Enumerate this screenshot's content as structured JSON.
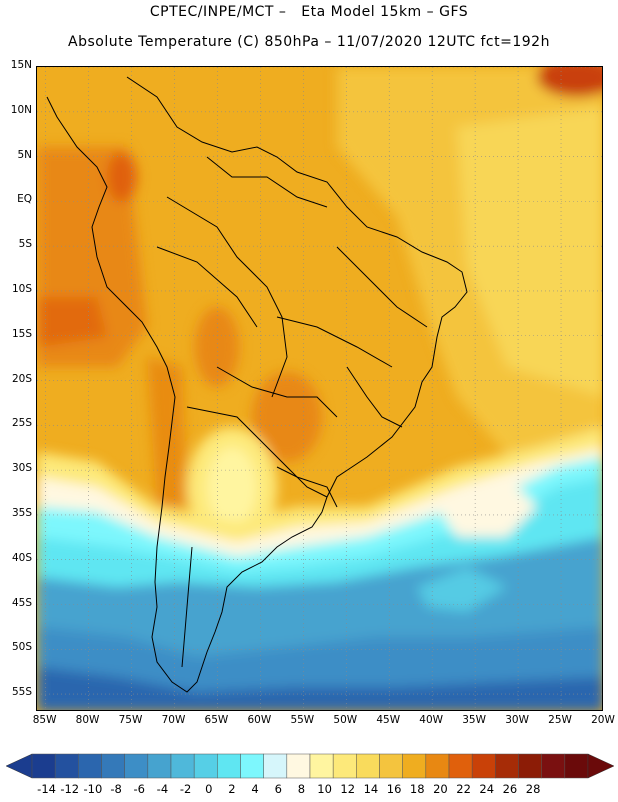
{
  "header": {
    "line1": "CPTEC/INPE/MCT –   Eta Model 15km – GFS",
    "line2": "Absolute Temperature (C) 850hPa – 11/07/2020 12UTC fct=192h"
  },
  "map": {
    "lat_ticks": [
      "15N",
      "10N",
      "5N",
      "EQ",
      "5S",
      "10S",
      "15S",
      "20S",
      "25S",
      "30S",
      "35S",
      "40S",
      "45S",
      "50S",
      "55S"
    ],
    "lon_ticks": [
      "85W",
      "80W",
      "75W",
      "70W",
      "65W",
      "60W",
      "55W",
      "50W",
      "45W",
      "40W",
      "35W",
      "30W",
      "25W",
      "20W"
    ],
    "lat_range": [
      15,
      -57
    ],
    "lon_range": [
      -86,
      -20
    ]
  },
  "colorbar": {
    "labels": [
      "-14",
      "-12",
      "-10",
      "-8",
      "-6",
      "-4",
      "-2",
      "0",
      "2",
      "4",
      "6",
      "8",
      "10",
      "12",
      "14",
      "16",
      "18",
      "20",
      "22",
      "24",
      "26",
      "28"
    ],
    "colors": [
      "#1b3d8f",
      "#23519f",
      "#2b66ae",
      "#3479b9",
      "#3d8ec6",
      "#46a3cf",
      "#4fb8da",
      "#56cfe6",
      "#5fe6f2",
      "#7df7fd",
      "#d6f6fb",
      "#fff8e1",
      "#fff5a0",
      "#fde97a",
      "#f9db5c",
      "#f4c43e",
      "#efad20",
      "#e88812",
      "#e0600c",
      "#c94108",
      "#a62c07",
      "#8c1c06",
      "#7a1010",
      "#6a0a0a"
    ]
  }
}
